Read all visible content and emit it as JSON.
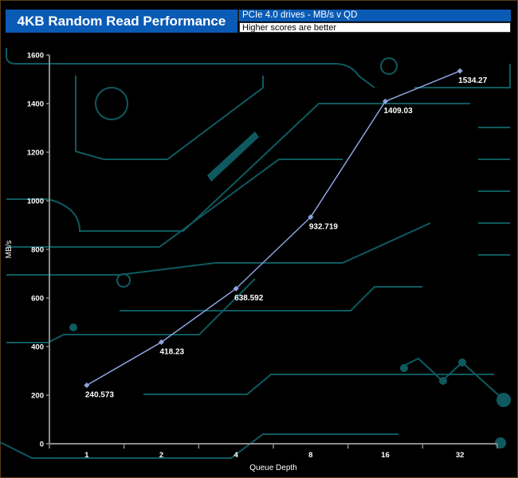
{
  "header": {
    "title": "4KB Random Read Performance",
    "subtitle": "PCIe 4.0 drives - MB/s v QD",
    "note": "Higher scores are better"
  },
  "colors": {
    "title_bg": "#0a5bb5",
    "line": "#8fa3e0",
    "axis": "#8c8c8c",
    "circuit": "#0e5a60"
  },
  "chart_data": {
    "type": "line",
    "title": "4KB Random Read Performance",
    "xlabel": "Queue Depth",
    "ylabel": "MB/s",
    "categories": [
      "1",
      "2",
      "4",
      "8",
      "16",
      "32"
    ],
    "values": [
      240.573,
      418.23,
      638.592,
      932.719,
      1409.03,
      1534.27
    ],
    "data_labels": [
      "240.573",
      "418.23",
      "638.592",
      "932.719",
      "1409.03",
      "1534.27"
    ],
    "ylim": [
      0,
      1600
    ],
    "yticks": [
      "0",
      "200",
      "400",
      "600",
      "800",
      "1000",
      "1200",
      "1400",
      "1600"
    ],
    "grid": false,
    "legend": "none"
  }
}
